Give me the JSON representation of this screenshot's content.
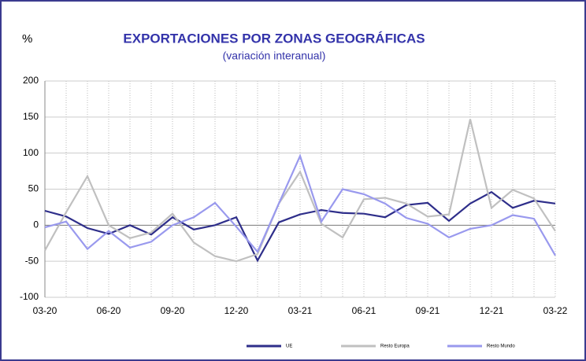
{
  "chart_data": {
    "type": "line",
    "title": "EXPORTACIONES POR ZONAS GEOGRÁFICAS",
    "subtitle": "(variación interanual)",
    "y_label": "%",
    "categories": [
      "03-20",
      null,
      null,
      "06-20",
      null,
      null,
      "09-20",
      null,
      null,
      "12-20",
      null,
      null,
      "03-21",
      null,
      null,
      "06-21",
      null,
      null,
      "09-21",
      null,
      null,
      "12-21",
      null,
      null,
      "03-22"
    ],
    "series": [
      {
        "name": "UE",
        "color": "#2e2e8a",
        "values": [
          20,
          12,
          -4,
          -12,
          0,
          -13,
          11,
          -6,
          0,
          11,
          -49,
          4,
          15,
          21,
          17,
          16,
          11,
          28,
          31,
          6,
          30,
          46,
          24,
          34,
          30
        ]
      },
      {
        "name": "Resto Europa",
        "color": "#c0c0c0",
        "values": [
          -35,
          18,
          68,
          0,
          -18,
          -10,
          16,
          -24,
          -43,
          -50,
          -40,
          30,
          74,
          2,
          -17,
          36,
          38,
          30,
          12,
          15,
          147,
          24,
          49,
          37,
          -8
        ]
      },
      {
        "name": "Resto Mundo",
        "color": "#9999ee",
        "values": [
          -3,
          5,
          -33,
          -8,
          -31,
          -23,
          0,
          11,
          31,
          -2,
          -37,
          30,
          96,
          5,
          50,
          43,
          30,
          10,
          2,
          -17,
          -5,
          0,
          14,
          9,
          -42
        ]
      }
    ],
    "ylim": [
      -100,
      200
    ],
    "yticks": [
      -100,
      -50,
      0,
      50,
      100,
      150,
      200
    ],
    "grid": true,
    "legend": "bottom"
  }
}
